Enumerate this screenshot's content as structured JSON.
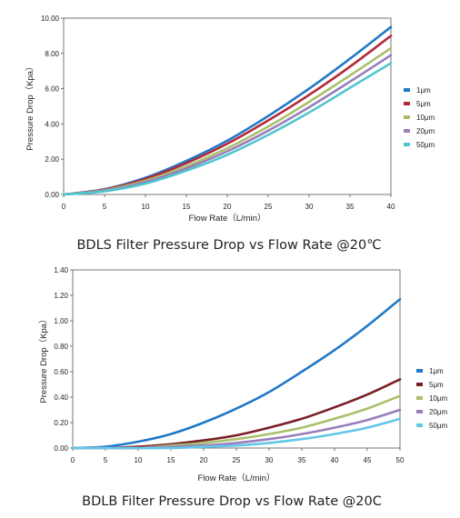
{
  "chart_data": [
    {
      "type": "line",
      "title": "BDLS Filter Pressure Drop vs Flow Rate @20℃",
      "xlabel": "Flow Rate（L/min）",
      "ylabel": "Pressure Drop（Kpa）",
      "xlim": [
        0,
        40
      ],
      "ylim": [
        0,
        10
      ],
      "xticks": [
        "0",
        "5",
        "10",
        "15",
        "20",
        "25",
        "30",
        "35",
        "40"
      ],
      "yticks": [
        "0.00",
        "2.00",
        "4.00",
        "6.00",
        "8.00",
        "10.00"
      ],
      "grid": false,
      "legend": "right",
      "x": [
        0,
        5,
        10,
        15,
        20,
        25,
        30,
        35,
        40
      ],
      "series": [
        {
          "name": "1μm",
          "color": "#1f78c8",
          "values": [
            0.0,
            0.3,
            0.95,
            1.9,
            3.05,
            4.45,
            6.0,
            7.7,
            9.5
          ]
        },
        {
          "name": "5μm",
          "color": "#b22a3a",
          "values": [
            0.0,
            0.28,
            0.88,
            1.78,
            2.88,
            4.2,
            5.65,
            7.25,
            9.0
          ]
        },
        {
          "name": "10μm",
          "color": "#a9c06a",
          "values": [
            0.0,
            0.24,
            0.78,
            1.6,
            2.62,
            3.85,
            5.25,
            6.75,
            8.3
          ]
        },
        {
          "name": "20μm",
          "color": "#9a7dbd",
          "values": [
            0.0,
            0.21,
            0.7,
            1.48,
            2.45,
            3.62,
            4.95,
            6.4,
            7.9
          ]
        },
        {
          "name": "50μm",
          "color": "#4fc6d0",
          "values": [
            0.0,
            0.18,
            0.62,
            1.35,
            2.25,
            3.38,
            4.65,
            6.05,
            7.45
          ]
        }
      ]
    },
    {
      "type": "line",
      "title": "BDLB Filter Pressure Drop vs Flow Rate @20C",
      "xlabel": "Flow Rate（L/min）",
      "ylabel": "Pressure Drop（Kpa）",
      "xlim": [
        0,
        50
      ],
      "ylim": [
        0,
        1.4
      ],
      "xticks": [
        "0",
        "5",
        "10",
        "15",
        "20",
        "25",
        "30",
        "35",
        "40",
        "45",
        "50"
      ],
      "yticks": [
        "0.00",
        "0.20",
        "0.40",
        "0.60",
        "0.80",
        "1.00",
        "1.20",
        "1.40"
      ],
      "grid": false,
      "legend": "right",
      "x": [
        0,
        5,
        10,
        15,
        20,
        25,
        30,
        35,
        40,
        45,
        50
      ],
      "series": [
        {
          "name": "1μm",
          "color": "#1f78c8",
          "values": [
            0.0,
            0.01,
            0.05,
            0.11,
            0.2,
            0.31,
            0.44,
            0.6,
            0.77,
            0.96,
            1.17
          ]
        },
        {
          "name": "5μm",
          "color": "#7a1f28",
          "values": [
            0.0,
            0.0,
            0.01,
            0.03,
            0.06,
            0.1,
            0.16,
            0.23,
            0.32,
            0.42,
            0.54
          ]
        },
        {
          "name": "10μm",
          "color": "#a9c06a",
          "values": [
            0.0,
            0.0,
            0.0,
            0.02,
            0.04,
            0.07,
            0.11,
            0.16,
            0.23,
            0.31,
            0.41
          ]
        },
        {
          "name": "20μm",
          "color": "#9a7dbd",
          "values": [
            0.0,
            0.0,
            0.0,
            0.01,
            0.02,
            0.04,
            0.07,
            0.11,
            0.16,
            0.22,
            0.3
          ]
        },
        {
          "name": "50μm",
          "color": "#63c6e8",
          "values": [
            0.0,
            0.0,
            0.0,
            0.0,
            0.01,
            0.02,
            0.04,
            0.07,
            0.11,
            0.16,
            0.23
          ]
        }
      ]
    }
  ]
}
